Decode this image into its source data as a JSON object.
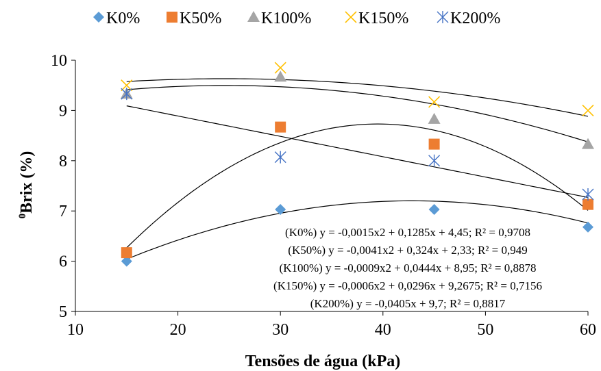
{
  "chart_data": {
    "type": "scatter",
    "xlabel": "Tensões de água (kPa)",
    "ylabel_sup": "0",
    "ylabel_main": "Brix (%)",
    "xlim": [
      10,
      60
    ],
    "ylim": [
      5,
      10
    ],
    "xticks": [
      "10",
      "20",
      "30",
      "40",
      "50",
      "60"
    ],
    "yticks": [
      "5",
      "6",
      "7",
      "8",
      "9",
      "10"
    ],
    "grid": false,
    "legend_position": "top",
    "x": [
      15,
      30,
      45,
      60
    ],
    "series": [
      {
        "name": "K0%",
        "marker": "diamond",
        "color": "#5B9BD5",
        "values": [
          6.0,
          7.03,
          7.03,
          6.68
        ],
        "trend": {
          "type": "poly2",
          "a": -0.0015,
          "b": 0.1285,
          "c": 4.45
        }
      },
      {
        "name": "K50%",
        "marker": "square",
        "color": "#ED7D31",
        "values": [
          6.17,
          8.67,
          8.33,
          7.13
        ],
        "trend": {
          "type": "poly2",
          "a": -0.0041,
          "b": 0.324,
          "c": 2.33
        }
      },
      {
        "name": "K100%",
        "marker": "triangle",
        "color": "#A5A5A5",
        "values": [
          9.33,
          9.67,
          8.83,
          8.33
        ],
        "trend": {
          "type": "poly2",
          "a": -0.0009,
          "b": 0.0444,
          "c": 8.95
        }
      },
      {
        "name": "K150%",
        "marker": "x",
        "color": "#FFC000",
        "values": [
          9.5,
          9.85,
          9.17,
          9.0
        ],
        "trend": {
          "type": "poly2",
          "a": -0.0006,
          "b": 0.0296,
          "c": 9.2675
        }
      },
      {
        "name": "K200%",
        "marker": "asterisk",
        "color": "#4472C4",
        "values": [
          9.33,
          8.07,
          8.0,
          7.33
        ],
        "trend": {
          "type": "linear",
          "a": 0,
          "b": -0.0405,
          "c": 9.7
        }
      }
    ],
    "equations": [
      "(K0%) y = -0,0015x2 + 0,1285x + 4,45; R² = 0,9708",
      "(K50%) y = -0,0041x2 + 0,324x + 2,33; R² = 0,949",
      "(K100%) y = -0,0009x2 + 0,0444x + 8,95; R² = 0,8878",
      "(K150%) y = -0,0006x2 + 0,0296x + 9,2675; R² = 0,7156",
      "(K200%) y = -0,0405x + 9,7; R² = 0,8817"
    ]
  }
}
